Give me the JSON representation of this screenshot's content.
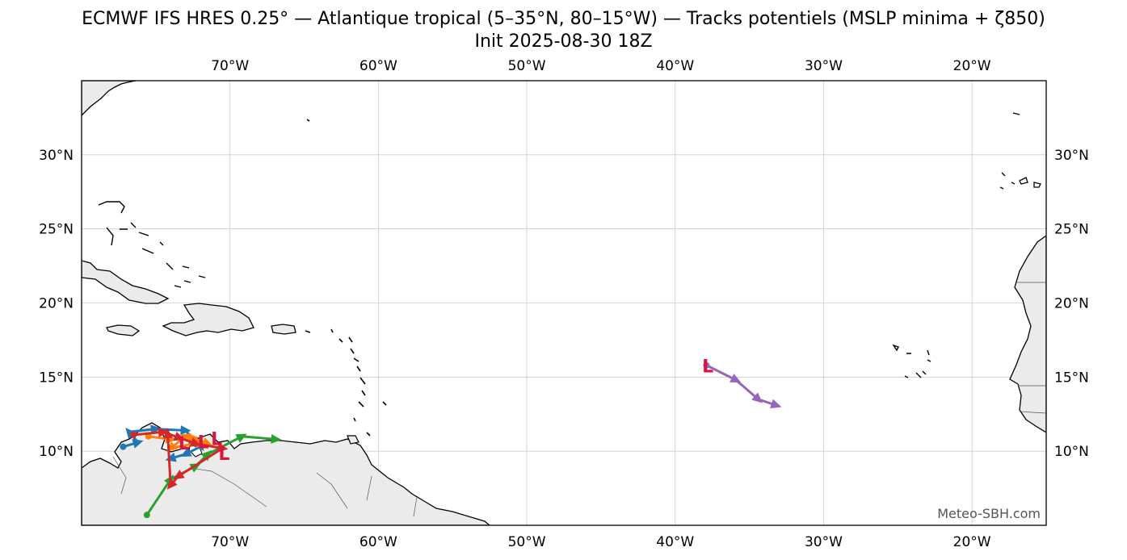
{
  "title_line1": "ECMWF IFS HRES 0.25° — Atlantique tropical (5–35°N, 80–15°W) — Tracks potentiels (MSLP minima + ζ850)",
  "title_line2": "Init 2025-08-30 18Z",
  "credit": "Meteo-SBH.com",
  "extent": {
    "lon_min": -80,
    "lon_max": -15,
    "lat_min": 5,
    "lat_max": 35
  },
  "lon_ticks": [
    {
      "lon": -70,
      "label": "70°W"
    },
    {
      "lon": -60,
      "label": "60°W"
    },
    {
      "lon": -50,
      "label": "50°W"
    },
    {
      "lon": -40,
      "label": "40°W"
    },
    {
      "lon": -30,
      "label": "30°W"
    },
    {
      "lon": -20,
      "label": "20°W"
    }
  ],
  "lat_ticks": [
    {
      "lat": 10,
      "label": "10°N"
    },
    {
      "lat": 15,
      "label": "15°N"
    },
    {
      "lat": 20,
      "label": "20°N"
    },
    {
      "lat": 25,
      "label": "25°N"
    },
    {
      "lat": 30,
      "label": "30°N"
    }
  ],
  "colors": {
    "land": "#ebebeb",
    "coast": "#000000",
    "grid": "#cccccc",
    "low_marker": "#dc143c"
  },
  "low_symbol": "L",
  "tracks": [
    {
      "color": "#1f77b4",
      "points": [
        [
          -77.2,
          10.3
        ],
        [
          -76.2,
          10.6
        ],
        [
          -76.8,
          11.3
        ],
        [
          -75.0,
          11.5
        ],
        [
          -73.0,
          11.4
        ],
        [
          -72.0,
          10.3
        ],
        [
          -73.0,
          9.8
        ],
        [
          -74.0,
          9.5
        ]
      ]
    },
    {
      "color": "#ff7f0e",
      "points": [
        [
          -75.5,
          11.0
        ],
        [
          -74.0,
          10.8
        ],
        [
          -72.5,
          10.9
        ],
        [
          -71.5,
          10.5
        ],
        [
          -73.0,
          11.0
        ],
        [
          -74.0,
          10.2
        ],
        [
          -72.0,
          10.6
        ]
      ]
    },
    {
      "color": "#2ca02c",
      "points": [
        [
          -75.6,
          5.7
        ],
        [
          -74.0,
          8.1
        ],
        [
          -72.3,
          9.0
        ],
        [
          -71.5,
          9.8
        ],
        [
          -69.2,
          11.0
        ],
        [
          -66.9,
          10.8
        ]
      ]
    },
    {
      "color": "#d62728",
      "points": [
        [
          -76.5,
          11.1
        ],
        [
          -74.5,
          11.3
        ],
        [
          -73.4,
          10.9
        ],
        [
          -72.3,
          10.5
        ],
        [
          -70.5,
          10.2
        ],
        [
          -73.5,
          8.3
        ],
        [
          -74.0,
          7.7
        ],
        [
          -74.2,
          11.2
        ]
      ]
    },
    {
      "color": "#9467bd",
      "points": [
        [
          -37.9,
          15.8
        ],
        [
          -35.9,
          14.8
        ],
        [
          -34.4,
          13.5
        ],
        [
          -33.2,
          13.1
        ]
      ]
    }
  ],
  "lows": [
    {
      "lon": -73.1,
      "lat": 10.6
    },
    {
      "lon": -71.8,
      "lat": 10.7
    },
    {
      "lon": -70.9,
      "lat": 10.9
    },
    {
      "lon": -70.4,
      "lat": 9.9
    },
    {
      "lon": -37.8,
      "lat": 15.8
    }
  ]
}
